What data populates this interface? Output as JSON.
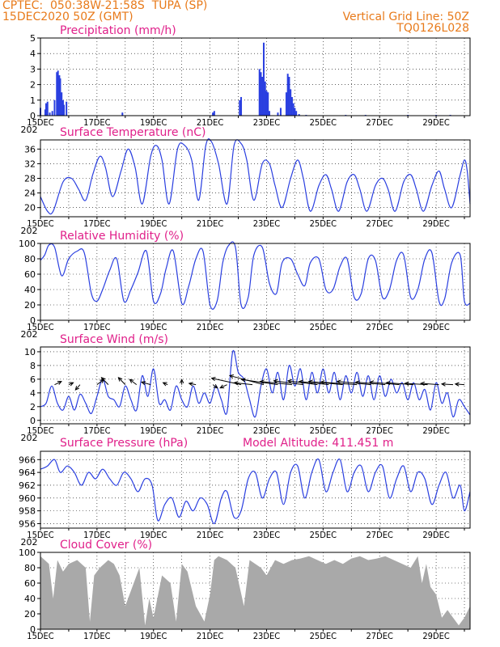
{
  "header": {
    "line1_left": "CPTEC:  050:38W-21:58S  TUPA (SP)",
    "line2_left": "15DEC2020 50Z (GMT)",
    "line2_right": "Vertical Grid Line: 50Z",
    "line3_right": "TQ0126L028"
  },
  "colors": {
    "line": "#2a3fe0",
    "bar": "#2a3fe0",
    "cloud": "#a9a9a9",
    "title": "#e0208a",
    "header": "#e87a1a"
  },
  "x_axis": {
    "labels": [
      "15DEC",
      "17DEC",
      "19DEC",
      "21DEC",
      "23DEC",
      "25DEC",
      "27DEC",
      "29DEC"
    ],
    "label_days": [
      0,
      2,
      4,
      6,
      8,
      10,
      12,
      14
    ],
    "range_days": [
      0,
      15.2
    ],
    "year_fragment": "202"
  },
  "chart_data": [
    {
      "id": "precip",
      "type": "bar",
      "title": "Precipitation (mm/h)",
      "ylim": [
        0,
        5
      ],
      "yticks": [
        0,
        1,
        2,
        3,
        4,
        5
      ],
      "x_days": [
        0.0,
        0.17,
        0.2,
        0.25,
        0.33,
        0.42,
        0.5,
        0.58,
        0.62,
        0.67,
        0.7,
        0.75,
        0.8,
        0.83,
        0.92,
        2.9,
        6.1,
        6.15,
        7.05,
        7.1,
        7.75,
        7.8,
        7.85,
        7.9,
        7.95,
        8.0,
        8.05,
        8.1,
        8.4,
        8.5,
        8.7,
        8.75,
        8.8,
        8.85,
        8.9,
        8.95,
        9.0,
        9.05,
        9.15,
        9.4,
        10.8,
        11.5,
        13.0,
        14.0,
        14.5
      ],
      "values": [
        0.5,
        0.4,
        0.8,
        0.9,
        0.2,
        0.3,
        1.0,
        2.8,
        2.9,
        2.6,
        2.4,
        1.5,
        1.0,
        0.7,
        0.9,
        0.2,
        0.2,
        0.3,
        1.0,
        1.2,
        3.0,
        2.8,
        2.5,
        4.7,
        2.2,
        1.6,
        1.5,
        0.3,
        0.2,
        0.5,
        1.5,
        2.7,
        2.5,
        1.7,
        1.2,
        0.8,
        0.5,
        0.3,
        0.1,
        0.05,
        0.05,
        0.05,
        0.05,
        0.05,
        0.05
      ]
    },
    {
      "id": "temperature",
      "type": "line",
      "title": "Surface Temperature (nC)",
      "ylim": [
        17.5,
        38.5
      ],
      "yticks": [
        20,
        24,
        28,
        32,
        36
      ],
      "x_days": [
        0.0,
        0.25,
        0.45,
        0.8,
        1.1,
        1.35,
        1.6,
        1.85,
        2.1,
        2.3,
        2.55,
        2.85,
        3.1,
        3.35,
        3.6,
        3.9,
        4.1,
        4.3,
        4.55,
        4.85,
        5.1,
        5.35,
        5.6,
        5.85,
        6.05,
        6.3,
        6.6,
        6.85,
        7.1,
        7.3,
        7.55,
        7.85,
        8.1,
        8.3,
        8.55,
        8.85,
        9.1,
        9.3,
        9.55,
        9.85,
        10.1,
        10.3,
        10.55,
        10.85,
        11.1,
        11.3,
        11.55,
        11.85,
        12.1,
        12.3,
        12.55,
        12.85,
        13.1,
        13.3,
        13.55,
        13.85,
        14.1,
        14.3,
        14.55,
        14.85,
        15.0,
        15.1,
        15.2
      ],
      "values": [
        23,
        19,
        19,
        27,
        28,
        25,
        22,
        29,
        34,
        31,
        23,
        30,
        36,
        31,
        21,
        34,
        37,
        33,
        21,
        36,
        37,
        33,
        22,
        37,
        38,
        32,
        21,
        37,
        37.5,
        33,
        22,
        32,
        32,
        26,
        20,
        28,
        33,
        28,
        19,
        26,
        29,
        25,
        19,
        27,
        29,
        25,
        19,
        26,
        28,
        25,
        19,
        27,
        29,
        25,
        19,
        26,
        30,
        25,
        20,
        29,
        33,
        30,
        21
      ]
    },
    {
      "id": "humidity",
      "type": "line",
      "title": "Relative Humidity (%)",
      "ylim": [
        0,
        100
      ],
      "yticks": [
        0,
        20,
        40,
        60,
        80,
        100
      ],
      "x_days": [
        0.0,
        0.15,
        0.3,
        0.5,
        0.75,
        1.0,
        1.3,
        1.55,
        1.8,
        2.0,
        2.2,
        2.45,
        2.7,
        2.95,
        3.2,
        3.45,
        3.75,
        4.0,
        4.25,
        4.45,
        4.7,
        5.0,
        5.25,
        5.5,
        5.75,
        6.0,
        6.25,
        6.45,
        6.65,
        6.9,
        7.1,
        7.35,
        7.55,
        7.85,
        8.1,
        8.35,
        8.55,
        8.85,
        9.1,
        9.35,
        9.55,
        9.85,
        10.1,
        10.35,
        10.6,
        10.85,
        11.1,
        11.35,
        11.6,
        11.85,
        12.1,
        12.35,
        12.6,
        12.85,
        13.1,
        13.35,
        13.6,
        13.85,
        14.1,
        14.3,
        14.55,
        14.85,
        15.0,
        15.2
      ],
      "values": [
        78,
        85,
        98,
        95,
        58,
        80,
        90,
        88,
        35,
        25,
        40,
        65,
        80,
        25,
        40,
        62,
        90,
        25,
        35,
        68,
        90,
        22,
        45,
        80,
        90,
        20,
        25,
        75,
        97,
        95,
        20,
        30,
        85,
        95,
        48,
        35,
        75,
        80,
        60,
        45,
        75,
        80,
        40,
        40,
        70,
        80,
        30,
        35,
        80,
        78,
        30,
        40,
        78,
        85,
        30,
        40,
        80,
        88,
        25,
        28,
        75,
        85,
        25,
        22
      ]
    },
    {
      "id": "wind",
      "type": "line",
      "title": "Surface Wind (m/s)",
      "ylim": [
        -0.5,
        10.7
      ],
      "yticks": [
        0,
        2,
        4,
        6,
        8,
        10
      ],
      "x_days": [
        0.0,
        0.2,
        0.4,
        0.6,
        0.8,
        1.0,
        1.2,
        1.4,
        1.6,
        1.8,
        2.0,
        2.2,
        2.4,
        2.6,
        2.8,
        3.0,
        3.2,
        3.4,
        3.6,
        3.8,
        4.0,
        4.2,
        4.4,
        4.6,
        4.8,
        5.0,
        5.2,
        5.4,
        5.6,
        5.8,
        6.0,
        6.2,
        6.4,
        6.6,
        6.8,
        7.0,
        7.2,
        7.4,
        7.6,
        7.8,
        8.0,
        8.2,
        8.4,
        8.6,
        8.8,
        9.0,
        9.2,
        9.4,
        9.6,
        9.8,
        10.0,
        10.2,
        10.4,
        10.6,
        10.8,
        11.0,
        11.2,
        11.4,
        11.6,
        11.8,
        12.0,
        12.2,
        12.4,
        12.6,
        12.8,
        13.0,
        13.2,
        13.4,
        13.6,
        13.8,
        14.0,
        14.2,
        14.4,
        14.6,
        14.8,
        15.0,
        15.2
      ],
      "values": [
        2,
        2.5,
        5,
        2.5,
        1.5,
        3.5,
        1.5,
        3.8,
        2.5,
        1,
        3.5,
        6,
        3.5,
        3,
        2,
        5,
        3,
        1.5,
        6.5,
        3.5,
        7.5,
        2.5,
        3,
        1.5,
        5,
        3,
        2,
        5,
        2.5,
        4,
        2.5,
        5,
        3,
        1.2,
        10,
        7,
        6,
        3,
        0.5,
        5,
        7.5,
        4,
        7,
        3,
        8,
        5,
        7.5,
        3,
        7,
        4,
        7.5,
        4,
        7,
        3,
        6.5,
        4,
        7,
        3.5,
        6.5,
        3,
        6.5,
        3.5,
        6,
        4,
        5.5,
        3,
        5.5,
        3,
        4.5,
        1.5,
        5.5,
        2.5,
        4,
        0.5,
        3,
        2,
        0.8
      ],
      "arrows": {
        "days": [
          0.5,
          1.0,
          1.4,
          2.0,
          2.4,
          3.0,
          3.4,
          3.9,
          4.5,
          5.0,
          5.5,
          6.1,
          6.6,
          7.1,
          7.5,
          7.9,
          8.4,
          8.9,
          9.3,
          9.8,
          10.2,
          10.7,
          11.2,
          11.7,
          12.2,
          12.7,
          13.2,
          13.7,
          14.1,
          14.6,
          15.0
        ],
        "dx": [
          0.3,
          0.2,
          -0.2,
          0.3,
          -0.3,
          -0.3,
          -0.3,
          -0.4,
          -0.2,
          0,
          -0.3,
          0.2,
          -0.3,
          -1.3,
          -0.8,
          -1.5,
          -1.6,
          -1.4,
          -1.3,
          -1.3,
          -1.3,
          -1.5,
          -1.6,
          -1.5,
          -1.3,
          -1.3,
          -1.2,
          -1.0,
          -0.8,
          -0.5,
          -0.4
        ],
        "dy": [
          0.5,
          0.3,
          -0.8,
          0.8,
          1.1,
          1.1,
          0.8,
          0.4,
          0.3,
          0.8,
          0.2,
          -0.5,
          -0.5,
          1.0,
          0.3,
          1.4,
          0.8,
          0.5,
          0.6,
          0.6,
          0.5,
          0.5,
          0.4,
          0.5,
          0.4,
          0.4,
          0.3,
          0.2,
          0.2,
          0.1,
          0.1
        ]
      }
    },
    {
      "id": "pressure",
      "type": "line",
      "title": "Surface Pressure (hPa)",
      "annotation": "Model Altitude: 411.451 m",
      "ylim": [
        955.3,
        967.3
      ],
      "yticks": [
        956,
        958,
        960,
        962,
        964,
        966
      ],
      "x_days": [
        0.0,
        0.25,
        0.5,
        0.7,
        0.95,
        1.2,
        1.45,
        1.7,
        1.95,
        2.2,
        2.45,
        2.7,
        2.95,
        3.2,
        3.45,
        3.7,
        3.95,
        4.15,
        4.4,
        4.65,
        4.9,
        5.15,
        5.4,
        5.65,
        5.9,
        6.15,
        6.4,
        6.6,
        6.85,
        7.1,
        7.35,
        7.6,
        7.85,
        8.1,
        8.35,
        8.6,
        8.85,
        9.1,
        9.35,
        9.6,
        9.85,
        10.1,
        10.35,
        10.6,
        10.85,
        11.1,
        11.35,
        11.6,
        11.85,
        12.1,
        12.35,
        12.6,
        12.85,
        13.1,
        13.35,
        13.6,
        13.85,
        14.1,
        14.35,
        14.6,
        14.85,
        15.0,
        15.2
      ],
      "values": [
        964.5,
        965,
        966,
        964,
        965,
        964,
        962,
        964,
        963,
        964.5,
        963,
        962,
        964,
        963,
        961,
        963,
        962,
        956.5,
        959,
        960,
        957,
        959.5,
        958,
        960,
        959,
        956,
        960,
        961,
        957,
        958,
        963,
        964,
        960,
        963,
        964,
        959,
        964,
        965,
        960,
        964,
        966,
        961,
        964,
        966,
        961,
        964,
        965,
        961,
        964,
        965,
        960,
        963,
        965,
        961,
        964,
        963,
        959,
        962,
        964,
        960,
        962,
        958,
        961
      ]
    },
    {
      "id": "cloud",
      "type": "area",
      "title": "Cloud Cover (%)",
      "ylim": [
        0,
        100
      ],
      "yticks": [
        0,
        20,
        40,
        60,
        80,
        100
      ],
      "x_days": [
        0.0,
        0.3,
        0.45,
        0.6,
        0.8,
        1.0,
        1.3,
        1.6,
        1.75,
        1.9,
        2.1,
        2.4,
        2.6,
        2.8,
        3.0,
        3.3,
        3.5,
        3.7,
        3.85,
        4.0,
        4.3,
        4.6,
        4.8,
        5.0,
        5.2,
        5.5,
        5.8,
        6.0,
        6.15,
        6.3,
        6.6,
        6.9,
        7.2,
        7.4,
        7.6,
        7.8,
        8.0,
        8.3,
        8.6,
        8.9,
        9.2,
        9.5,
        9.8,
        10.1,
        10.4,
        10.7,
        11.0,
        11.3,
        11.6,
        11.9,
        12.2,
        12.5,
        12.8,
        13.1,
        13.35,
        13.5,
        13.65,
        13.8,
        14.0,
        14.2,
        14.4,
        14.6,
        14.8,
        15.0,
        15.2
      ],
      "values": [
        95,
        85,
        40,
        90,
        75,
        85,
        90,
        80,
        10,
        70,
        80,
        90,
        85,
        70,
        30,
        60,
        80,
        5,
        40,
        15,
        70,
        60,
        10,
        85,
        75,
        30,
        10,
        45,
        90,
        95,
        90,
        80,
        30,
        90,
        85,
        80,
        70,
        90,
        85,
        90,
        92,
        95,
        90,
        85,
        90,
        85,
        92,
        95,
        90,
        92,
        95,
        90,
        85,
        80,
        95,
        60,
        85,
        55,
        45,
        15,
        25,
        15,
        5,
        15,
        30
      ]
    }
  ]
}
